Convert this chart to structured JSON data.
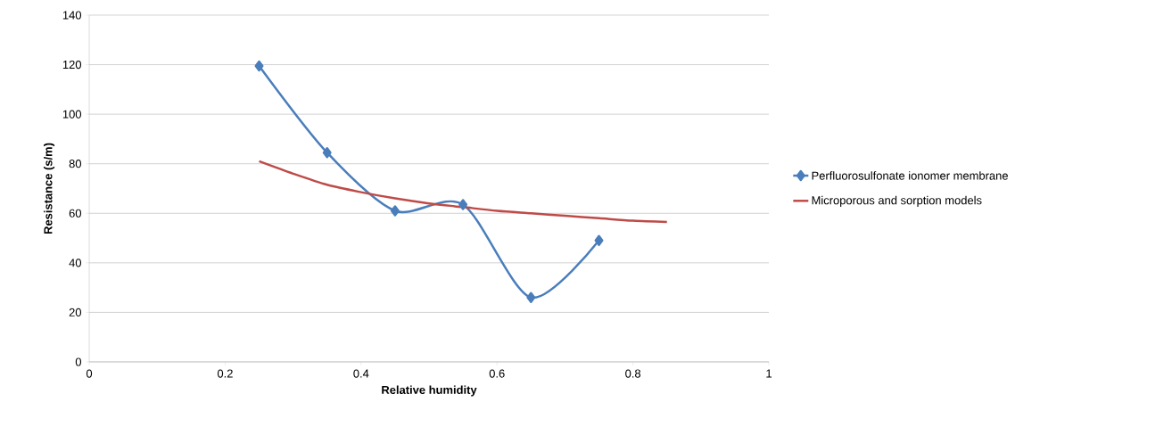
{
  "chart_data": {
    "type": "line",
    "xlabel": "Relative humidity",
    "ylabel": "Resistance (s/m)",
    "xlim": [
      0,
      1
    ],
    "xticks": [
      0,
      0.2,
      0.4,
      0.6,
      0.8,
      1
    ],
    "ylim": [
      0,
      140
    ],
    "yticks": [
      0,
      20,
      40,
      60,
      80,
      100,
      120,
      140
    ],
    "grid": "y",
    "legend": "right",
    "series": [
      {
        "name": "Perfluorosulfonate ionomer membrane",
        "color": "#4a7ebb",
        "marker": "diamond",
        "x": [
          0.25,
          0.35,
          0.45,
          0.55,
          0.65,
          0.75
        ],
        "values": [
          119.5,
          84.5,
          61,
          63.5,
          26,
          49
        ]
      },
      {
        "name": "Microporous and sorption models",
        "color": "#be4b48",
        "marker": "none",
        "x": [
          0.25,
          0.3,
          0.35,
          0.4,
          0.45,
          0.5,
          0.55,
          0.6,
          0.65,
          0.7,
          0.75,
          0.8,
          0.85
        ],
        "values": [
          81,
          76,
          71.5,
          68.5,
          66,
          64,
          62.5,
          61,
          60,
          59,
          58,
          57,
          56.5
        ]
      }
    ]
  }
}
